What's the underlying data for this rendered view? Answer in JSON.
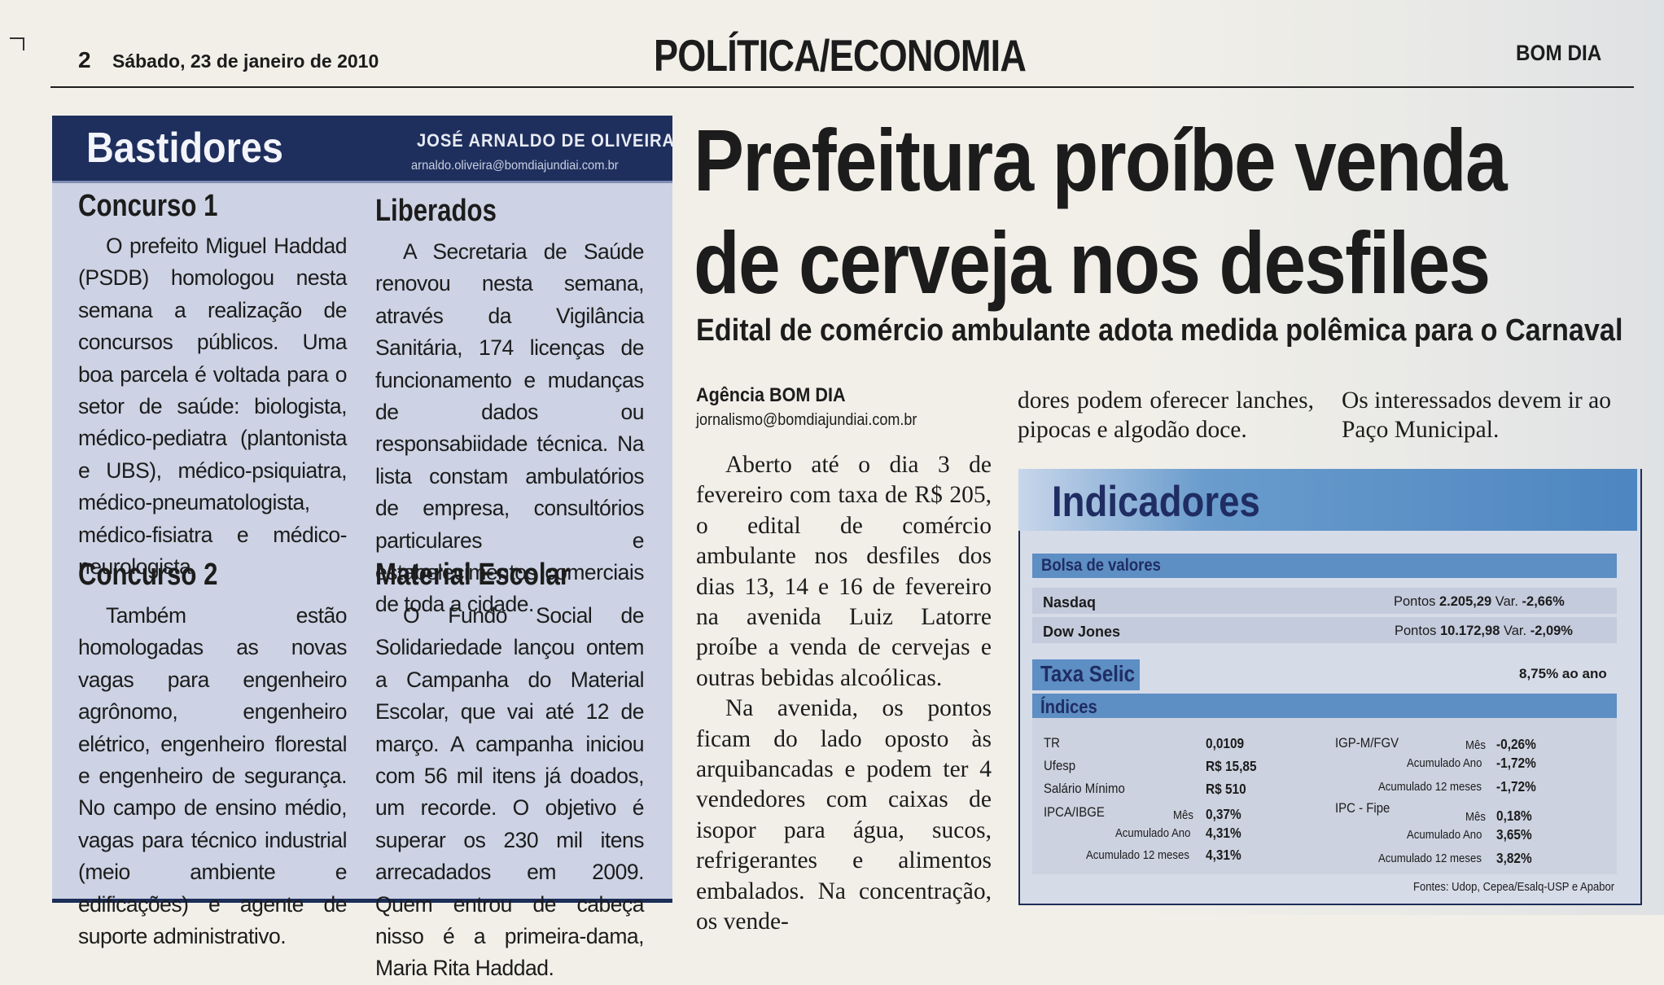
{
  "header": {
    "page_number": "2",
    "date": "Sábado, 23 de janeiro de 2010",
    "section": "POLÍTICA/ECONOMIA",
    "brand": "BOM DIA"
  },
  "bastidores": {
    "title": "Bastidores",
    "author": "JOSÉ ARNALDO DE OLIVEIRA",
    "email": "arnaldo.oliveira@bomdiajundiai.com.br",
    "items": [
      {
        "heading": "Concurso 1",
        "text": "O prefeito Miguel Haddad (PSDB) homologou nesta semana a realização de concursos públicos. Uma boa parcela é voltada para o setor de saúde: biologista, médico-pediatra (plantonista e UBS), médico-psiquiatra, médico-pneumatologista, médico-fisiatra e médico-neurologista."
      },
      {
        "heading": "Concurso 2",
        "text": "Também estão homologadas as novas vagas para engenheiro agrônomo, engenheiro elétrico, engenheiro florestal e engenheiro de segurança. No campo de ensino médio, vagas para técnico industrial (meio ambiente e edificações) e agente de suporte administrativo."
      },
      {
        "heading": "Liberados",
        "text": "A Secretaria de Saúde renovou nesta semana, através da Vigilância Sanitária, 174 licenças de funcionamento e mudanças de dados ou responsabiidade técnica. Na lista constam ambulatórios de empresa, consultórios particulares e estabelecimentos comerciais de toda a cidade."
      },
      {
        "heading": "Material Escolar",
        "text": "O Fundo Social de Solidariedade lançou ontem a Campanha do Material Escolar, que vai até 12 de março. A campanha iniciou com 56 mil itens já doados, um recorde. O objetivo é superar os 230 mil itens arrecadados em 2009. Quem entrou de cabeça nisso é a primeira-dama, Maria Rita Haddad."
      }
    ]
  },
  "article": {
    "headline_line1": "Prefeitura proíbe venda",
    "headline_line2": "de cerveja nos desfiles",
    "subhead": "Edital de comércio ambulante adota medida polêmica para o Carnaval",
    "byline": "Agência BOM DIA",
    "byline_email": "jornalismo@bomdiajundiai.com.br",
    "paragraph1": "Aberto até o dia 3 de fevereiro com taxa de R$ 205, o edital de comércio ambulante nos desfiles dos dias 13, 14 e 16 de fevereiro na avenida Luiz Latorre proíbe a venda de cervejas e outras bebidas alcoólicas.",
    "paragraph2": "Na avenida, os pontos ficam do lado oposto às arquibancadas e podem ter 4 vendedores com caixas de isopor para água, sucos, refrigerantes e alimentos embalados. Na concentração, os vende-",
    "col2_text": "dores podem oferecer lanches, pipocas e algodão doce.",
    "col3_text": "Os interessados devem ir ao Paço Municipal."
  },
  "indicadores": {
    "title": "Indicadores",
    "bolsa_label": "Bolsa de valores",
    "markets": [
      {
        "name": "Nasdaq",
        "points_label": "Pontos",
        "points": "2.205,29",
        "var_label": "Var.",
        "var": "-2,66%"
      },
      {
        "name": "Dow Jones",
        "points_label": "Pontos",
        "points": "10.172,98",
        "var_label": "Var.",
        "var": "-2,09%"
      }
    ],
    "selic_label": "Taxa Selic",
    "selic_value": "8,75% ao ano",
    "indices_label": "Índices",
    "left_indices": [
      {
        "name": "TR",
        "value": "0,0109"
      },
      {
        "name": "Ufesp",
        "value": "R$ 15,85"
      },
      {
        "name": "Salário Mínimo",
        "value": "R$ 510"
      }
    ],
    "ipca": {
      "name": "IPCA/IBGE",
      "rows": [
        {
          "label": "Mês",
          "value": "0,37%"
        },
        {
          "label": "Acumulado Ano",
          "value": "4,31%"
        },
        {
          "label": "Acumulado 12 meses",
          "value": "4,31%"
        }
      ]
    },
    "igpm": {
      "name": "IGP-M/FGV",
      "rows": [
        {
          "label": "Mês",
          "value": "-0,26%"
        },
        {
          "label": "Acumulado Ano",
          "value": "-1,72%"
        },
        {
          "label": "Acumulado 12 meses",
          "value": "-1,72%"
        }
      ]
    },
    "ipc": {
      "name": "IPC - Fipe",
      "rows": [
        {
          "label": "Mês",
          "value": "0,18%"
        },
        {
          "label": "Acumulado Ano",
          "value": "3,65%"
        },
        {
          "label": "Acumulado 12 meses",
          "value": "3,82%"
        }
      ]
    },
    "sources": "Fontes: Udop, Cepea/Esalq-USP e Apabor"
  },
  "colors": {
    "navy": "#1f2f5d",
    "panel": "#cdd3e4",
    "accent_blue": "#5d8ec4"
  }
}
